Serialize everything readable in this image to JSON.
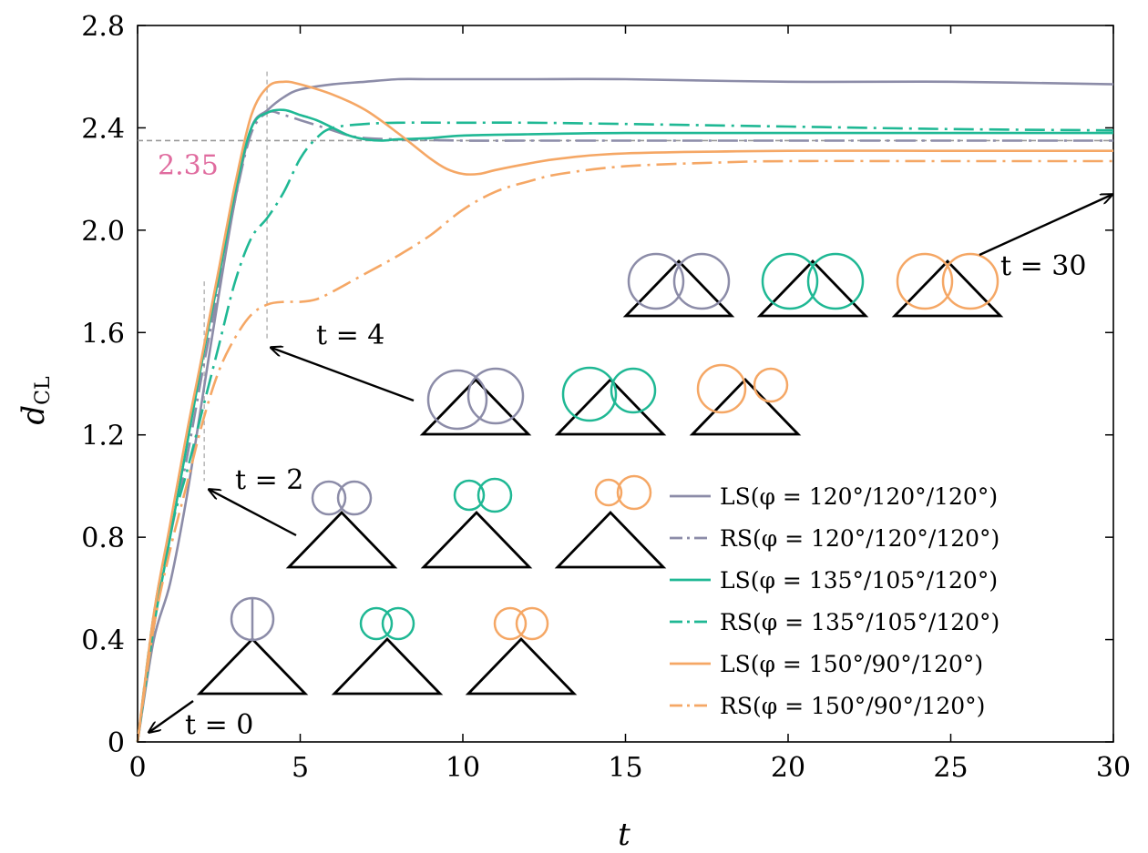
{
  "chart_data": {
    "type": "line",
    "xlabel": "t",
    "ylabel": "d",
    "ylabel_sub": "CL",
    "xlim": [
      0,
      30
    ],
    "ylim": [
      0,
      2.8
    ],
    "xticks": [
      0,
      5,
      10,
      15,
      20,
      25,
      30
    ],
    "yticks": [
      0,
      0.4,
      0.8,
      1.2,
      1.6,
      2.0,
      2.4,
      2.8
    ],
    "xtick_labels": [
      "0",
      "5",
      "10",
      "15",
      "20",
      "25",
      "30"
    ],
    "ytick_labels": [
      "0",
      "0.4",
      "0.8",
      "1.2",
      "1.6",
      "2.0",
      "2.4",
      "2.8"
    ],
    "grid": false,
    "legend_position": "bottom-right",
    "colors": {
      "gray": "#8c8ca8",
      "teal": "#1fb894",
      "orange": "#f5a765"
    },
    "series": [
      {
        "name": "LS(φ = 120°/120°/120°)",
        "color": "#8c8ca8",
        "style": "solid",
        "x": [
          0,
          0.5,
          1,
          1.5,
          2,
          2.5,
          3,
          3.5,
          4,
          4.5,
          5,
          6,
          7,
          8,
          9,
          10,
          12,
          15,
          20,
          25,
          30
        ],
        "y": [
          0,
          0.4,
          0.62,
          0.95,
          1.35,
          1.75,
          2.12,
          2.4,
          2.47,
          2.52,
          2.55,
          2.57,
          2.58,
          2.59,
          2.59,
          2.59,
          2.59,
          2.59,
          2.58,
          2.58,
          2.57
        ]
      },
      {
        "name": "RS(φ = 120°/120°/120°)",
        "color": "#8c8ca8",
        "style": "dashdot",
        "x": [
          0,
          0.5,
          1,
          1.5,
          2,
          2.5,
          3,
          3.5,
          4,
          4.5,
          5,
          5.5,
          6,
          6.5,
          7,
          8,
          10,
          12,
          15,
          20,
          25,
          30
        ],
        "y": [
          0,
          0.45,
          0.8,
          1.1,
          1.45,
          1.78,
          2.12,
          2.38,
          2.46,
          2.45,
          2.43,
          2.41,
          2.39,
          2.37,
          2.36,
          2.355,
          2.35,
          2.35,
          2.35,
          2.35,
          2.35,
          2.35
        ]
      },
      {
        "name": "LS(φ = 135°/105°/120°)",
        "color": "#1fb894",
        "style": "solid",
        "x": [
          0,
          0.5,
          1,
          1.5,
          2,
          2.5,
          3,
          3.5,
          4,
          4.5,
          5,
          5.5,
          6,
          6.5,
          7,
          7.5,
          8,
          9,
          10,
          12,
          15,
          20,
          25,
          30
        ],
        "y": [
          0,
          0.45,
          0.8,
          1.15,
          1.5,
          1.82,
          2.15,
          2.4,
          2.46,
          2.47,
          2.45,
          2.43,
          2.4,
          2.37,
          2.355,
          2.35,
          2.355,
          2.36,
          2.37,
          2.375,
          2.38,
          2.38,
          2.38,
          2.38
        ]
      },
      {
        "name": "RS(φ = 135°/105°/120°)",
        "color": "#1fb894",
        "style": "dashdot",
        "x": [
          0,
          0.5,
          1,
          1.5,
          2,
          2.5,
          3,
          3.5,
          4,
          4.5,
          5,
          5.5,
          6,
          7,
          8,
          10,
          12,
          15,
          20,
          25,
          30
        ],
        "y": [
          0,
          0.5,
          0.82,
          1.05,
          1.3,
          1.55,
          1.8,
          1.97,
          2.05,
          2.15,
          2.28,
          2.36,
          2.4,
          2.415,
          2.42,
          2.42,
          2.42,
          2.415,
          2.405,
          2.395,
          2.39
        ]
      },
      {
        "name": "LS(φ = 150°/90°/120°)",
        "color": "#f5a765",
        "style": "solid",
        "x": [
          0,
          0.5,
          1,
          1.5,
          2,
          2.5,
          3,
          3.5,
          4,
          4.5,
          5,
          6,
          7,
          8,
          9,
          9.5,
          10,
          10.5,
          11,
          12,
          13,
          15,
          20,
          25,
          30
        ],
        "y": [
          0,
          0.5,
          0.85,
          1.2,
          1.52,
          1.85,
          2.18,
          2.45,
          2.56,
          2.58,
          2.57,
          2.53,
          2.47,
          2.38,
          2.28,
          2.24,
          2.22,
          2.22,
          2.235,
          2.26,
          2.28,
          2.3,
          2.31,
          2.31,
          2.31
        ]
      },
      {
        "name": "RS(φ = 150°/90°/120°)",
        "color": "#f5a765",
        "style": "dashdot",
        "x": [
          0,
          0.5,
          1,
          1.5,
          2,
          2.5,
          3,
          3.5,
          4,
          4.5,
          5,
          5.5,
          6,
          7,
          8,
          9,
          10,
          11,
          12,
          13,
          15,
          18,
          20,
          25,
          30
        ],
        "y": [
          0,
          0.45,
          0.75,
          1.0,
          1.25,
          1.45,
          1.58,
          1.67,
          1.71,
          1.72,
          1.72,
          1.73,
          1.76,
          1.83,
          1.9,
          1.98,
          2.08,
          2.15,
          2.19,
          2.22,
          2.25,
          2.265,
          2.27,
          2.27,
          2.27
        ]
      }
    ],
    "reference_line": {
      "y": 2.35,
      "label": "2.35",
      "color": "#e06c9f"
    },
    "annotations": [
      {
        "label": "t = 0",
        "time_index": 0
      },
      {
        "label": "t = 2",
        "time_index": 1
      },
      {
        "label": "t = 4",
        "time_index": 2
      },
      {
        "label": "t = 30",
        "time_index": 3
      }
    ]
  }
}
